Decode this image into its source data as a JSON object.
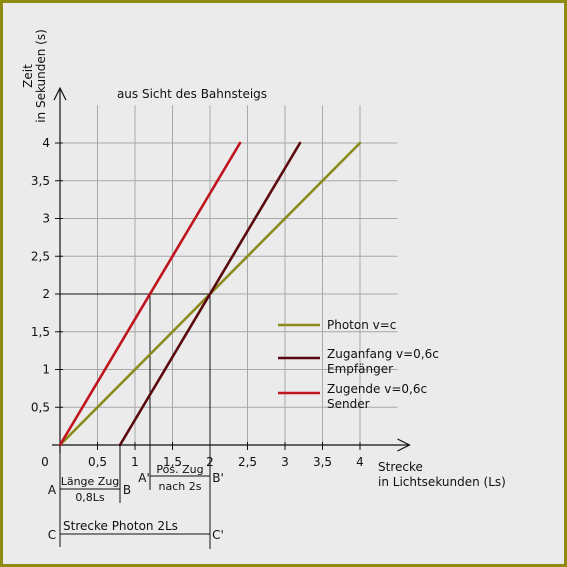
{
  "chart_data": {
    "type": "line",
    "title": "aus Sicht des Bahnsteigs",
    "ylabel": [
      "Zeit",
      "in Sekunden (s)"
    ],
    "xlabel": [
      "Strecke",
      "in Lichtsekunden (Ls)"
    ],
    "origin_label": "0",
    "xlim": [
      0,
      4.5
    ],
    "ylim": [
      0,
      4.7
    ],
    "grid": true,
    "x_ticks": [
      {
        "value": 0.5,
        "label": "0,5"
      },
      {
        "value": 1,
        "label": "1"
      },
      {
        "value": 1.5,
        "label": "1,5"
      },
      {
        "value": 2,
        "label": "2"
      },
      {
        "value": 2.5,
        "label": "2,5"
      },
      {
        "value": 3,
        "label": "3"
      },
      {
        "value": 3.5,
        "label": "3,5"
      },
      {
        "value": 4,
        "label": "4"
      }
    ],
    "y_ticks": [
      {
        "value": 0.5,
        "label": "0,5"
      },
      {
        "value": 1,
        "label": "1"
      },
      {
        "value": 1.5,
        "label": "1,5"
      },
      {
        "value": 2,
        "label": "2"
      },
      {
        "value": 2.5,
        "label": "2,5"
      },
      {
        "value": 3,
        "label": "3"
      },
      {
        "value": 3.5,
        "label": "3,5"
      },
      {
        "value": 4,
        "label": "4"
      }
    ],
    "series": [
      {
        "name": "Photon v=c",
        "color": "#8c8a1a",
        "points": [
          [
            0,
            0
          ],
          [
            4,
            4
          ]
        ]
      },
      {
        "name": [
          "Zuganfang v=0,6c",
          "Empfänger"
        ],
        "color": "#5a0a0e",
        "points": [
          [
            0.8,
            0
          ],
          [
            3.2,
            4
          ]
        ]
      },
      {
        "name": [
          "Zugende v=0,6c",
          "Sender"
        ],
        "color": "#c0141e",
        "points": [
          [
            0,
            0
          ],
          [
            2.4,
            4
          ]
        ]
      }
    ],
    "legend_position": "right",
    "guides": [
      {
        "kind": "hline",
        "y": 2,
        "x_from": 0,
        "x_to": 2
      },
      {
        "kind": "vline",
        "x": 1.2,
        "y_from": 2,
        "y_to": 0
      },
      {
        "kind": "vline",
        "x": 2,
        "y_from": 2,
        "y_to": 0
      }
    ],
    "point_labels": [
      {
        "text": "A'",
        "x": 1.2
      },
      {
        "text": "B'",
        "x": 2
      }
    ],
    "measures": [
      {
        "start_label": "A",
        "end_label": "B",
        "x_from": 0,
        "x_to": 0.8,
        "labels": [
          "Länge Zug",
          "0,8Ls"
        ]
      },
      {
        "start_label": "",
        "end_label": "",
        "x_from": 1.2,
        "x_to": 2,
        "labels": [
          "Pos. Zug",
          "nach 2s"
        ]
      },
      {
        "start_label": "C",
        "end_label": "C'",
        "x_from": 0,
        "x_to": 2,
        "labels": [
          "Strecke Photon 2Ls"
        ]
      }
    ]
  }
}
